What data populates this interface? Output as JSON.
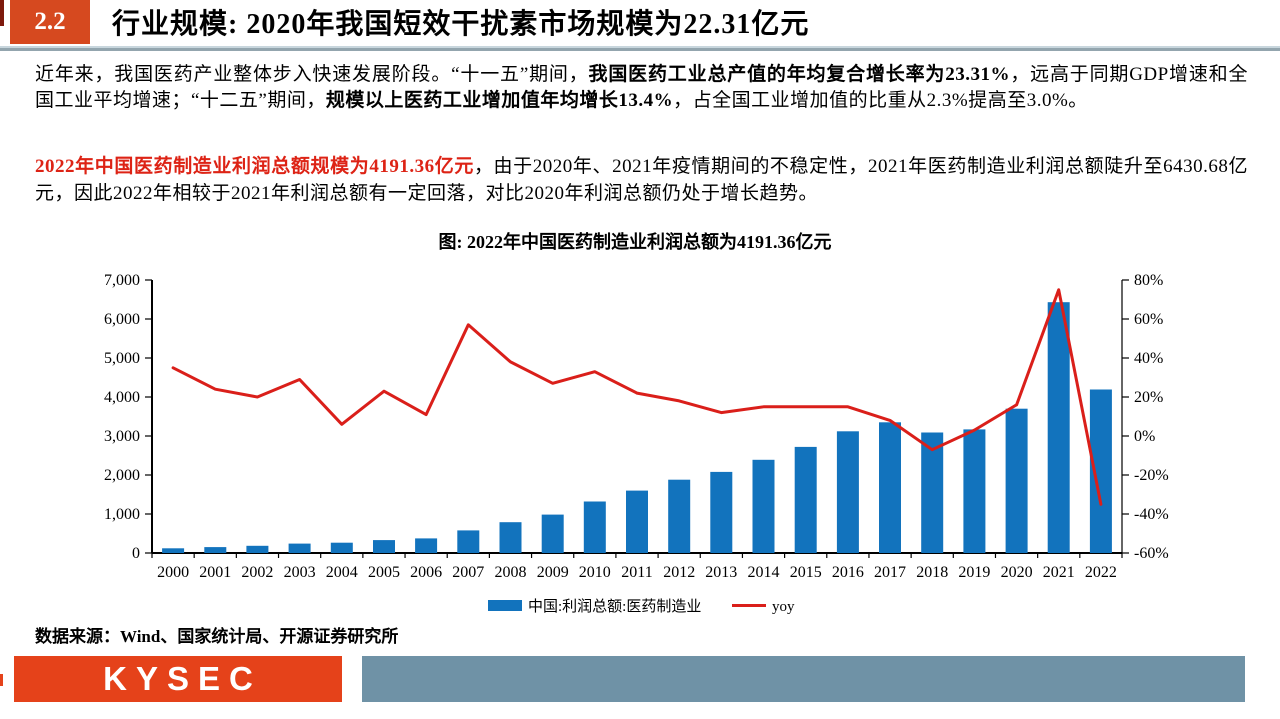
{
  "header": {
    "section_number": "2.2",
    "title": "行业规模: 2020年我国短效干扰素市场规模为22.31亿元"
  },
  "colors": {
    "badge_red": "#d6491f",
    "logo_red": "#e5421a",
    "footer_gray": "#6f92a6",
    "highlight_red": "#dd2315",
    "bar_blue": "#1273bd",
    "line_red": "#da1f1a"
  },
  "paragraphs": {
    "p1": [
      {
        "text": "近年来，我国医药产业整体步入快速发展阶段。“十一五”期间，"
      },
      {
        "text": "我国医药工业总产值的年均复合增长率为23.31%",
        "bold": true
      },
      {
        "text": "，远高于同期GDP增速和全国工业平均增速；“十二五”期间，"
      },
      {
        "text": "规模以上医药工业增加值年均增长13.4%",
        "bold": true
      },
      {
        "text": "，占全国工业增加值的比重从2.3%提高至3.0%。"
      }
    ],
    "p2": [
      {
        "text": "2022年中国医药制造业利润总额规模为4191.36亿元",
        "bold": true,
        "color": "#dd2315"
      },
      {
        "text": "，由于2020年、2021年疫情期间的不稳定性，2021年医药制造业利润总额陡升至6430.68亿元，因此2022年相较于2021年利润总额有一定回落，对比2020年利润总额仍处于增长趋势。"
      }
    ]
  },
  "chart": {
    "title": "图: 2022年中国医药制造业利润总额为4191.36亿元"
  },
  "chart_data": {
    "type": "bar",
    "subtype": "bar+line combo, dual axis",
    "title": "图: 2022年中国医药制造业利润总额为4191.36亿元",
    "categories": [
      "2000",
      "2001",
      "2002",
      "2003",
      "2004",
      "2005",
      "2006",
      "2007",
      "2008",
      "2009",
      "2010",
      "2011",
      "2012",
      "2013",
      "2014",
      "2015",
      "2016",
      "2017",
      "2018",
      "2019",
      "2020",
      "2021",
      "2022"
    ],
    "series": [
      {
        "name": "中国:利润总额:医药制造业",
        "type": "bar",
        "axis": "left",
        "unit": "亿元",
        "values": [
          120,
          150,
          185,
          240,
          265,
          330,
          375,
          580,
          790,
          985,
          1320,
          1600,
          1880,
          2080,
          2390,
          2720,
          3120,
          3350,
          3090,
          3170,
          3700,
          6430.68,
          4191.36
        ]
      },
      {
        "name": "yoy",
        "type": "line",
        "axis": "right",
        "unit": "%",
        "values": [
          35,
          24,
          20,
          29,
          6,
          23,
          11,
          57,
          38,
          27,
          33,
          22,
          18,
          12,
          15,
          15,
          15,
          8,
          -7,
          3,
          16,
          75,
          -35
        ]
      }
    ],
    "left_axis": {
      "min": 0,
      "max": 7000,
      "ticks": [
        {
          "v": 0,
          "label": "0"
        },
        {
          "v": 1000,
          "label": "1,000"
        },
        {
          "v": 2000,
          "label": "2,000"
        },
        {
          "v": 3000,
          "label": "3,000"
        },
        {
          "v": 4000,
          "label": "4,000"
        },
        {
          "v": 5000,
          "label": "5,000"
        },
        {
          "v": 6000,
          "label": "6,000"
        },
        {
          "v": 7000,
          "label": "7,000"
        }
      ]
    },
    "right_axis": {
      "min": -60,
      "max": 80,
      "ticks": [
        {
          "v": -60,
          "label": "-60%"
        },
        {
          "v": -40,
          "label": "-40%"
        },
        {
          "v": -20,
          "label": "-20%"
        },
        {
          "v": 0,
          "label": "0%"
        },
        {
          "v": 20,
          "label": "20%"
        },
        {
          "v": 40,
          "label": "40%"
        },
        {
          "v": 60,
          "label": "60%"
        },
        {
          "v": 80,
          "label": "80%"
        }
      ]
    },
    "grid": false,
    "legend_position": "bottom",
    "bar_color": "#1273bd",
    "line_color": "#da1f1a"
  },
  "source": "数据来源：Wind、国家统计局、开源证券研究所",
  "footer": {
    "logo_text": "KYSEC"
  }
}
